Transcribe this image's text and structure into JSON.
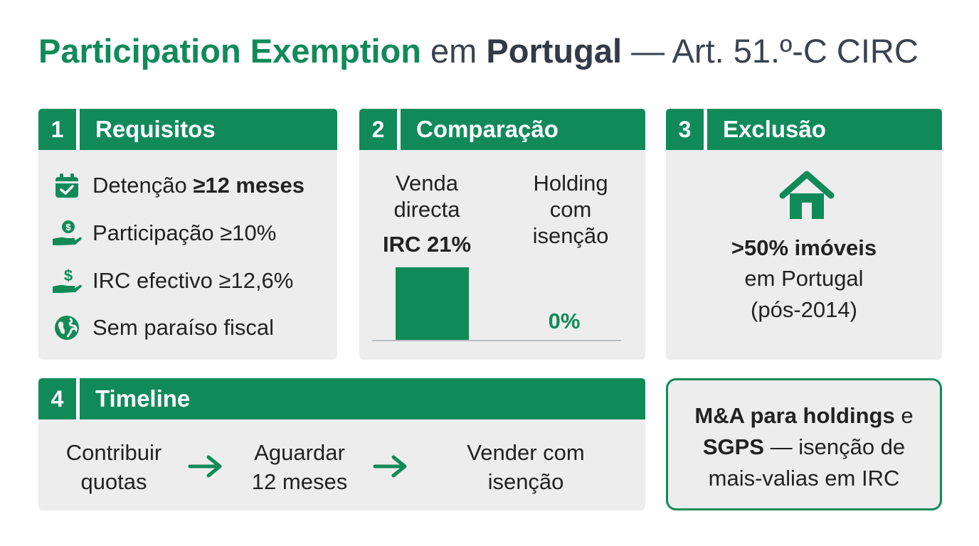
{
  "title": {
    "part1": "Participation Exemption",
    "part2": " em ",
    "part3": "Portugal",
    "part4": " — Art. 51.º-C CIRC"
  },
  "colors": {
    "accent": "#118a5a",
    "card_bg": "#ededee",
    "title_dark": "#323a48"
  },
  "card1": {
    "number": "1",
    "title": "Requisitos",
    "items": [
      {
        "icon": "calendar-check-icon",
        "text": "Detenção ",
        "bold": "≥12 meses"
      },
      {
        "icon": "hand-money-icon",
        "text": "Participação ≥10%",
        "bold": ""
      },
      {
        "icon": "hand-dollar-icon",
        "text": "IRC efectivo ≥12,6%",
        "bold": ""
      },
      {
        "icon": "globe-icon",
        "text": "Sem paraíso fiscal",
        "bold": ""
      }
    ]
  },
  "card2": {
    "number": "2",
    "title": "Comparação",
    "col1_label_1": "Venda",
    "col1_label_2": "directa",
    "col1_value": "IRC 21%",
    "col2_label_1": "Holding",
    "col2_label_2": "com",
    "col2_label_3": "isenção",
    "col2_value": "0%",
    "chart_data": {
      "type": "bar",
      "categories": [
        "Venda directa",
        "Holding com isenção"
      ],
      "values": [
        21,
        0
      ],
      "unit": "%"
    }
  },
  "card3": {
    "number": "3",
    "title": "Exclusão",
    "icon": "house-icon",
    "line1": ">50% imóveis",
    "line2": "em Portugal",
    "line3": "(pós-2014)"
  },
  "card4": {
    "number": "4",
    "title": "Timeline",
    "steps": [
      {
        "line1": "Contribuir",
        "line2": "quotas"
      },
      {
        "line1": "Aguardar",
        "line2": "12 meses"
      },
      {
        "line1": "Vender com",
        "line2": "isenção"
      }
    ]
  },
  "note": {
    "bold1": "M&A para holdings",
    "normal1": " e",
    "bold2": "SGPS",
    "normal2": " — isenção de",
    "line3": "mais-valias em IRC"
  }
}
